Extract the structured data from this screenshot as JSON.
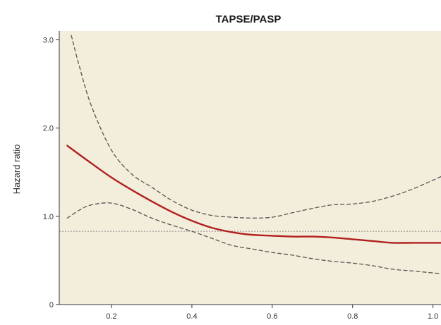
{
  "chart_data": {
    "type": "line",
    "title": "TAPSE/PASP",
    "xlabel": "",
    "ylabel": "Hazard ratio",
    "xlim": [
      0.07,
      1.02
    ],
    "ylim": [
      0,
      3.1
    ],
    "xticks": [
      0.2,
      0.4,
      0.6,
      0.8,
      1.0
    ],
    "xtick_labels": [
      "0.2",
      "0.4",
      "0.6",
      "0.8",
      "1.0"
    ],
    "yticks": [
      0,
      1.0,
      2.0,
      3.0
    ],
    "ytick_labels": [
      "0",
      "1.0",
      "2.0",
      "3.0"
    ],
    "grid": false,
    "background_color": "#f3eddb",
    "reference_line": {
      "y": 0.83,
      "style": "dotted",
      "color": "#888888"
    },
    "series": [
      {
        "role": "estimate",
        "style": "solid",
        "color": "#b0201e",
        "x": [
          0.09,
          0.15,
          0.2,
          0.25,
          0.3,
          0.35,
          0.4,
          0.45,
          0.5,
          0.55,
          0.6,
          0.65,
          0.7,
          0.75,
          0.8,
          0.85,
          0.9,
          0.95,
          1.02
        ],
        "y": [
          1.8,
          1.6,
          1.44,
          1.3,
          1.17,
          1.05,
          0.95,
          0.87,
          0.82,
          0.79,
          0.78,
          0.77,
          0.77,
          0.76,
          0.74,
          0.72,
          0.7,
          0.7,
          0.7
        ]
      },
      {
        "role": "upper-ci",
        "style": "dashed",
        "color": "#555555",
        "x": [
          0.1,
          0.12,
          0.15,
          0.2,
          0.25,
          0.3,
          0.35,
          0.4,
          0.45,
          0.5,
          0.55,
          0.6,
          0.65,
          0.7,
          0.75,
          0.8,
          0.85,
          0.9,
          0.95,
          1.02
        ],
        "y": [
          3.05,
          2.7,
          2.25,
          1.75,
          1.48,
          1.33,
          1.18,
          1.07,
          1.01,
          0.99,
          0.98,
          0.99,
          1.04,
          1.09,
          1.13,
          1.14,
          1.17,
          1.23,
          1.31,
          1.45
        ]
      },
      {
        "role": "lower-ci",
        "style": "dashed",
        "color": "#555555",
        "x": [
          0.09,
          0.12,
          0.15,
          0.2,
          0.25,
          0.3,
          0.35,
          0.4,
          0.45,
          0.5,
          0.55,
          0.6,
          0.65,
          0.7,
          0.75,
          0.8,
          0.85,
          0.9,
          0.95,
          1.02
        ],
        "y": [
          0.98,
          1.07,
          1.13,
          1.15,
          1.08,
          0.98,
          0.9,
          0.83,
          0.75,
          0.67,
          0.63,
          0.59,
          0.56,
          0.52,
          0.49,
          0.47,
          0.44,
          0.4,
          0.38,
          0.35
        ]
      }
    ]
  }
}
